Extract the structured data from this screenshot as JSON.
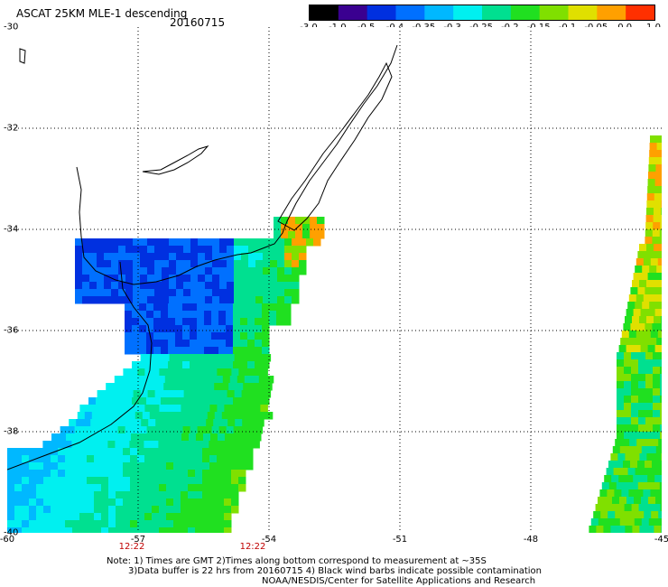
{
  "header": {
    "title": "ASCAT 25KM MLE-1 descending",
    "date": "20160715"
  },
  "colorbar": {
    "labels": [
      "-3.0",
      "-1.0",
      "-0.5",
      "-0.4",
      "-0.35",
      "-0.3",
      "-0.25",
      "-0.2",
      "-0.15",
      "-0.1",
      "-0.05",
      "0.0",
      "1.0"
    ],
    "colors": [
      "#000000",
      "#3a0090",
      "#0030e0",
      "#0070ff",
      "#00b8ff",
      "#00f0f0",
      "#00e090",
      "#20e020",
      "#80e000",
      "#e0e000",
      "#ffa000",
      "#ff3000"
    ]
  },
  "axes": {
    "lat_labels": [
      "-30",
      "-32",
      "-34",
      "-36",
      "-38",
      "-40"
    ],
    "lon_labels": [
      "-60",
      "-57",
      "-54",
      "-51",
      "-48",
      "-45"
    ]
  },
  "times": [
    "12:22",
    "12:22"
  ],
  "notes": {
    "line1": "Note: 1) Times are GMT 2)Times along bottom correspond to measurement at ~35S",
    "line2": "3)Data buffer is 22 hrs from 20160715 4) Black wind barbs indicate possible contamination",
    "line3": "NOAA/NESDIS/Center for Satellite Applications and Research"
  }
}
